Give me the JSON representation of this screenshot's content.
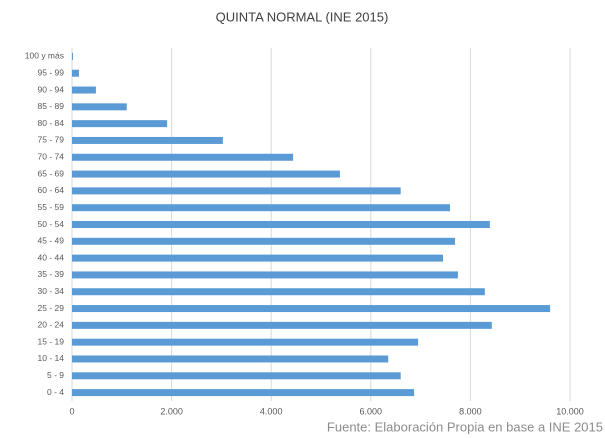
{
  "chart_data": {
    "type": "bar",
    "orientation": "horizontal",
    "title": "QUINTA NORMAL (INE 2015)",
    "categories": [
      "0 - 4",
      "5 - 9",
      "10 - 14",
      "15 - 19",
      "20 - 24",
      "25 - 29",
      "30 - 34",
      "35 - 39",
      "40 - 44",
      "45 - 49",
      "50 - 54",
      "55 - 59",
      "60 - 64",
      "65 - 69",
      "70 - 74",
      "75 - 79",
      "80 - 84",
      "85 - 89",
      "90 - 94",
      "95 - 99",
      "100 y más"
    ],
    "values": [
      6870,
      6600,
      6350,
      6950,
      8430,
      9600,
      8290,
      7750,
      7450,
      7690,
      8390,
      7590,
      6600,
      5380,
      4440,
      3030,
      1910,
      1100,
      480,
      140,
      20
    ],
    "color": "#5b9bd5",
    "xlim": [
      0,
      10000
    ],
    "xticks": [
      0,
      {
        "value": 2000,
        "label": "2.000"
      },
      {
        "value": 4000,
        "label": "4.000"
      },
      {
        "value": 6000,
        "label": "6.000"
      },
      {
        "value": 8000,
        "label": "8.000"
      },
      {
        "value": 10000,
        "label": "10.000"
      }
    ],
    "grid": true,
    "annotation": "Fuente: Elaboración Propia en base a INE 2015"
  }
}
